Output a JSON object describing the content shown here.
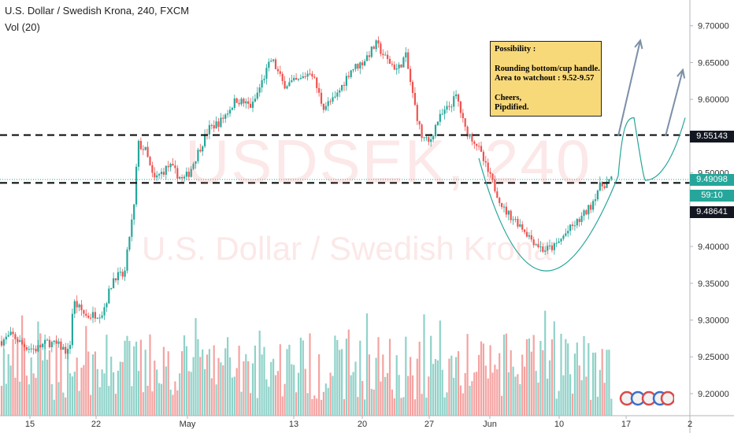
{
  "header": {
    "symbol_title": "U.S. Dollar / Swedish Krona, 240, FXCM",
    "volume_label": "Vol (20)"
  },
  "watermark": {
    "ticker": "USDSEK, 240",
    "name": "U.S. Dollar / Swedish Krona"
  },
  "note": {
    "line1": "Possibility :",
    "line2": "Rounding bottom/cup handle.",
    "line3": "Area to watchout : 9.52-9.57",
    "line4": "Cheers,",
    "line5": "Pipdified."
  },
  "badges": {
    "resistance": "9.55143",
    "current_price": "9.49098",
    "countdown": "59:10",
    "support": "9.48641"
  },
  "colors": {
    "up": "#26a69a",
    "down": "#ef5350",
    "vol_up": "#8fd2c9",
    "vol_down": "#f4a3a1",
    "note_bg": "#f8d97a",
    "arrow": "#7b8fa8",
    "dashed": "#111111",
    "current_line": "#26a69a"
  },
  "icons": [
    "event-flags-icon"
  ],
  "chart_data": {
    "type": "candlestick",
    "y_axis": {
      "range": [
        9.17,
        9.735
      ],
      "ticks": [
        "9.70000",
        "9.65000",
        "9.60000",
        "9.55000",
        "9.50000",
        "9.45000",
        "9.40000",
        "9.35000",
        "9.30000",
        "9.25000",
        "9.20000"
      ],
      "tick_values": [
        9.7,
        9.65,
        9.6,
        9.55,
        9.5,
        9.45,
        9.4,
        9.35,
        9.3,
        9.25,
        9.2
      ]
    },
    "x_axis": {
      "ticks": [
        "15",
        "22",
        "May",
        "13",
        "20",
        "27",
        "Jun",
        "10",
        "17",
        "2"
      ]
    },
    "levels": {
      "resistance": 9.55143,
      "support": 9.48641,
      "current": 9.49098
    },
    "price_path": [
      [
        0,
        9.27
      ],
      [
        15,
        9.28
      ],
      [
        30,
        9.265
      ],
      [
        45,
        9.26
      ],
      [
        60,
        9.27
      ],
      [
        75,
        9.265
      ],
      [
        88,
        9.255
      ],
      [
        93,
        9.325
      ],
      [
        110,
        9.305
      ],
      [
        130,
        9.31
      ],
      [
        145,
        9.36
      ],
      [
        158,
        9.36
      ],
      [
        165,
        9.42
      ],
      [
        170,
        9.45
      ],
      [
        175,
        9.54
      ],
      [
        185,
        9.53
      ],
      [
        195,
        9.49
      ],
      [
        215,
        9.51
      ],
      [
        232,
        9.49
      ],
      [
        240,
        9.5
      ],
      [
        250,
        9.525
      ],
      [
        265,
        9.56
      ],
      [
        280,
        9.57
      ],
      [
        300,
        9.6
      ],
      [
        320,
        9.59
      ],
      [
        335,
        9.63
      ],
      [
        345,
        9.655
      ],
      [
        360,
        9.62
      ],
      [
        380,
        9.625
      ],
      [
        395,
        9.64
      ],
      [
        410,
        9.59
      ],
      [
        425,
        9.6
      ],
      [
        445,
        9.64
      ],
      [
        460,
        9.65
      ],
      [
        478,
        9.675
      ],
      [
        490,
        9.655
      ],
      [
        505,
        9.64
      ],
      [
        515,
        9.66
      ],
      [
        525,
        9.6
      ],
      [
        535,
        9.55
      ],
      [
        545,
        9.54
      ],
      [
        555,
        9.57
      ],
      [
        570,
        9.59
      ],
      [
        580,
        9.605
      ],
      [
        590,
        9.56
      ],
      [
        605,
        9.54
      ],
      [
        620,
        9.5
      ],
      [
        640,
        9.45
      ],
      [
        660,
        9.43
      ],
      [
        675,
        9.41
      ],
      [
        690,
        9.395
      ],
      [
        705,
        9.4
      ],
      [
        720,
        9.42
      ],
      [
        735,
        9.435
      ],
      [
        750,
        9.455
      ],
      [
        760,
        9.48
      ],
      [
        775,
        9.49
      ]
    ],
    "projection_cup": {
      "points": [
        [
          608,
          9.52
        ],
        [
          690,
          9.367
        ],
        [
          785,
          9.496
        ]
      ]
    },
    "projection_path_1": [
      [
        785,
        9.496
      ],
      [
        790,
        9.55
      ],
      [
        805,
        9.575
      ],
      [
        820,
        9.49
      ],
      [
        850,
        9.51
      ],
      [
        870,
        9.575
      ]
    ],
    "arrows": [
      {
        "from": [
          785,
          9.55
        ],
        "to": [
          813,
          9.68
        ]
      },
      {
        "from": [
          845,
          9.55
        ],
        "to": [
          867,
          9.64
        ]
      }
    ]
  }
}
